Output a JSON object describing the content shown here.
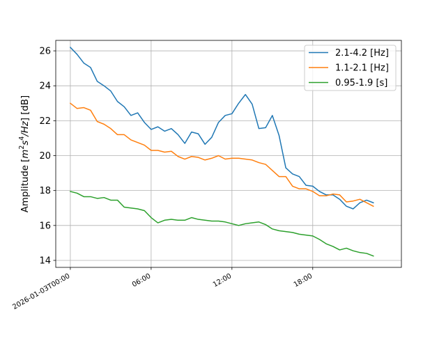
{
  "chart_data": {
    "type": "line",
    "title": "",
    "xlabel": "",
    "ylabel": "Amplitude [m²s⁴/Hz] [dB]",
    "ylabel_parts": {
      "pre": "Amplitude [",
      "base1": "m",
      "sup1": "2",
      "base2": "s",
      "sup2": "4",
      "post1": "/Hz",
      "post2": "] [dB]"
    },
    "xlim": [
      "2026-01-02T22:55",
      "2026-01-04T00:35"
    ],
    "ylim": [
      13.6,
      26.6
    ],
    "x_ticks": [
      {
        "x": "2026-01-03T00:00",
        "label": "2026-01-03T00:00"
      },
      {
        "x": "2026-01-03T06:00",
        "label": "06:00"
      },
      {
        "x": "2026-01-03T12:00",
        "label": "12:00"
      },
      {
        "x": "2026-01-03T18:00",
        "label": "18:00"
      }
    ],
    "y_ticks": [
      14,
      16,
      18,
      20,
      22,
      24,
      26
    ],
    "grid": true,
    "legend_position": "top-right",
    "x": [
      "2026-01-03T00:00",
      "2026-01-03T00:30",
      "2026-01-03T01:00",
      "2026-01-03T01:30",
      "2026-01-03T02:00",
      "2026-01-03T02:30",
      "2026-01-03T03:00",
      "2026-01-03T03:30",
      "2026-01-03T04:00",
      "2026-01-03T04:30",
      "2026-01-03T05:00",
      "2026-01-03T05:30",
      "2026-01-03T06:00",
      "2026-01-03T06:30",
      "2026-01-03T07:00",
      "2026-01-03T07:30",
      "2026-01-03T08:00",
      "2026-01-03T08:30",
      "2026-01-03T09:00",
      "2026-01-03T09:30",
      "2026-01-03T10:00",
      "2026-01-03T10:30",
      "2026-01-03T11:00",
      "2026-01-03T11:30",
      "2026-01-03T12:00",
      "2026-01-03T12:30",
      "2026-01-03T13:00",
      "2026-01-03T13:30",
      "2026-01-03T14:00",
      "2026-01-03T14:30",
      "2026-01-03T15:00",
      "2026-01-03T15:30",
      "2026-01-03T16:00",
      "2026-01-03T16:30",
      "2026-01-03T17:00",
      "2026-01-03T17:30",
      "2026-01-03T18:00",
      "2026-01-03T18:30",
      "2026-01-03T19:00",
      "2026-01-03T19:30",
      "2026-01-03T20:00",
      "2026-01-03T20:30",
      "2026-01-03T21:00",
      "2026-01-03T21:30",
      "2026-01-03T22:00",
      "2026-01-03T22:30"
    ],
    "series": [
      {
        "name": "2.1-4.2 [Hz]",
        "color": "#1f77b4",
        "values": [
          26.2,
          25.8,
          25.3,
          25.05,
          24.25,
          24.0,
          23.7,
          23.1,
          22.8,
          22.3,
          22.45,
          21.9,
          21.5,
          21.65,
          21.4,
          21.55,
          21.2,
          20.7,
          21.35,
          21.25,
          20.65,
          21.05,
          21.9,
          22.3,
          22.4,
          23.0,
          23.5,
          22.95,
          21.55,
          21.6,
          22.3,
          21.15,
          19.3,
          18.95,
          18.8,
          18.3,
          18.25,
          17.95,
          17.75,
          17.75,
          17.5,
          17.1,
          16.95,
          17.3,
          17.45,
          17.3
        ]
      },
      {
        "name": "1.1-2.1 [Hz]",
        "color": "#ff7f0e",
        "values": [
          23.0,
          22.7,
          22.75,
          22.6,
          21.95,
          21.8,
          21.55,
          21.2,
          21.2,
          20.9,
          20.75,
          20.6,
          20.3,
          20.3,
          20.2,
          20.25,
          19.95,
          19.8,
          19.95,
          19.9,
          19.75,
          19.85,
          20.0,
          19.8,
          19.85,
          19.85,
          19.8,
          19.75,
          19.6,
          19.5,
          19.15,
          18.8,
          18.8,
          18.25,
          18.1,
          18.1,
          17.95,
          17.7,
          17.7,
          17.8,
          17.75,
          17.35,
          17.4,
          17.5,
          17.3,
          17.1
        ]
      },
      {
        "name": "0.95-1.9 [s]",
        "color": "#2ca02c",
        "values": [
          17.95,
          17.85,
          17.65,
          17.65,
          17.55,
          17.6,
          17.45,
          17.45,
          17.05,
          17.0,
          16.95,
          16.85,
          16.45,
          16.15,
          16.3,
          16.35,
          16.3,
          16.3,
          16.45,
          16.35,
          16.3,
          16.25,
          16.25,
          16.2,
          16.1,
          16.0,
          16.1,
          16.15,
          16.2,
          16.05,
          15.8,
          15.7,
          15.65,
          15.6,
          15.5,
          15.45,
          15.4,
          15.2,
          14.95,
          14.8,
          14.6,
          14.7,
          14.55,
          14.45,
          14.4,
          14.25
        ]
      }
    ]
  }
}
